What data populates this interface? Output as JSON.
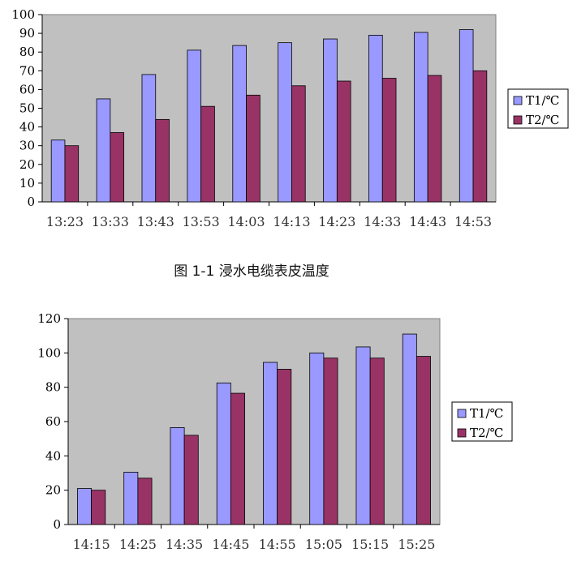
{
  "colors": {
    "t1": "#9999ff",
    "t2": "#993366",
    "plot_bg": "#c0c0c0"
  },
  "caption_1": "图 1-1 浸水电缆表皮温度",
  "chart_data": [
    {
      "type": "bar",
      "title": "",
      "xlabel": "",
      "ylabel": "",
      "ylim": [
        0,
        100
      ],
      "yticks": [
        0,
        10,
        20,
        30,
        40,
        50,
        60,
        70,
        80,
        90,
        100
      ],
      "grid": false,
      "legend": "right",
      "categories": [
        "13:23",
        "13:33",
        "13:43",
        "13:53",
        "14:03",
        "14:13",
        "14:23",
        "14:33",
        "14:43",
        "14:53"
      ],
      "series": [
        {
          "name": "T1/℃",
          "color": "#9999ff",
          "values": [
            33,
            55,
            68,
            81,
            83.5,
            85,
            87,
            89,
            90.5,
            92
          ]
        },
        {
          "name": "T2/℃",
          "color": "#993366",
          "values": [
            30,
            37,
            44,
            51,
            57,
            62,
            64.5,
            66,
            67.5,
            70
          ]
        }
      ]
    },
    {
      "type": "bar",
      "title": "",
      "xlabel": "",
      "ylabel": "",
      "ylim": [
        0,
        120
      ],
      "yticks": [
        0,
        20,
        40,
        60,
        80,
        100,
        120
      ],
      "grid": false,
      "legend": "right",
      "categories": [
        "14:15",
        "14:25",
        "14:35",
        "14:45",
        "14:55",
        "15:05",
        "15:15",
        "15:25"
      ],
      "series": [
        {
          "name": "T1/℃",
          "color": "#9999ff",
          "values": [
            21,
            30.5,
            56.5,
            82.5,
            94.5,
            100,
            103.5,
            111
          ]
        },
        {
          "name": "T2/℃",
          "color": "#993366",
          "values": [
            20,
            27,
            52,
            76.5,
            90.5,
            97,
            97,
            98
          ]
        }
      ]
    }
  ]
}
